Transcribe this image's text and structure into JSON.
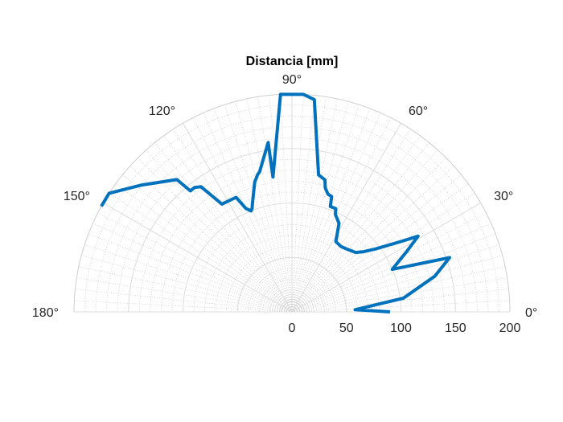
{
  "chart_data": {
    "type": "line",
    "coordinate_system": "polar",
    "title": "Distancia [mm]",
    "theta_range_deg": [
      0,
      180
    ],
    "r_range": [
      0,
      200
    ],
    "grid": true,
    "minor_grid": true,
    "theta_tick_labels": [
      "0°",
      "30°",
      "60°",
      "90°",
      "120°",
      "150°",
      "180°"
    ],
    "r_tick_labels": [
      "0",
      "50",
      "100",
      "150",
      "200"
    ],
    "line_color": "#0072BD",
    "series": [
      {
        "theta_deg": [
          0,
          2,
          7,
          14,
          19,
          23,
          28,
          31,
          33,
          37,
          40,
          43,
          48,
          53,
          58,
          62,
          66,
          67,
          70,
          71,
          73,
          75,
          76,
          78,
          79,
          84,
          87,
          93,
          98,
          98,
          103,
          104,
          106,
          109,
          110,
          111,
          112,
          114,
          116,
          123,
          126,
          128,
          130,
          131,
          140,
          147,
          151
        ],
        "r": [
          90,
          58,
          103,
          135,
          153,
          100,
          120,
          135,
          118,
          96,
          86,
          80,
          77,
          75,
          76,
          92,
          98,
          103,
          103,
          112,
          113,
          118,
          125,
          127,
          128,
          196,
          200,
          200,
          125,
          157,
          132,
          130,
          124,
          110,
          106,
          102,
          100,
          104,
          117,
          118,
          142,
          145,
          145,
          161,
          181,
          200,
          200
        ]
      }
    ]
  }
}
